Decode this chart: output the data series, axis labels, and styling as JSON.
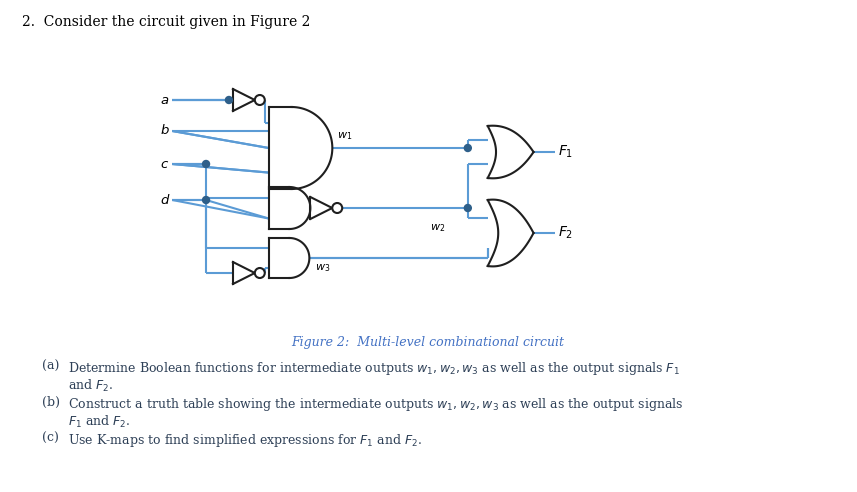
{
  "wire_color": "#5b9bd5",
  "gate_edge_color": "#1f1f1f",
  "dot_color": "#2e5f8a",
  "text_color_body": "#2e4057",
  "text_color_caption": "#4472c4",
  "fig_width": 8.57,
  "fig_height": 4.92,
  "dpi": 100,
  "title": "2.  Consider the circuit given in Figure 2",
  "caption": "Figure 2:  Multi-level combinational circuit",
  "body": [
    [
      "(a)",
      "Determine Boolean functions for intermediate outputs $w_1, w_2, w_3$ as well as the output signals $F_1$"
    ],
    [
      "",
      "and $F_2$."
    ],
    [
      "(b)",
      "Construct a truth table showing the intermediate outputs $w_1, w_2, w_3$ as well as the output signals"
    ],
    [
      "",
      "$F_1$ and $F_2$."
    ],
    [
      "(c)",
      "Use K-maps to find simplified expressions for $F_1$ and $F_2$."
    ]
  ]
}
